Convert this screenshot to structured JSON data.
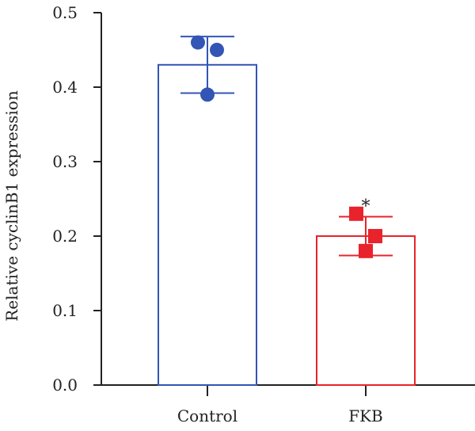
{
  "chart_data": {
    "type": "bar",
    "categories": [
      "Control",
      "FKB"
    ],
    "ylabel": "Relative cyclinB1 expression",
    "ylim": [
      0,
      0.5
    ],
    "yticks": [
      "0.0",
      "0.1",
      "0.2",
      "0.3",
      "0.4",
      "0.5"
    ],
    "grid": false,
    "series": [
      {
        "values": [
          0.43,
          0.2
        ],
        "error": [
          0.038,
          0.026
        ],
        "points": [
          [
            0.46,
            0.45,
            0.39
          ],
          [
            0.23,
            0.2,
            0.18
          ]
        ]
      }
    ],
    "colors": [
      "#3355b5",
      "#e8232b"
    ],
    "markers": [
      "circle",
      "square"
    ],
    "annotations": [
      {
        "category": "FKB",
        "text": "*"
      }
    ]
  }
}
